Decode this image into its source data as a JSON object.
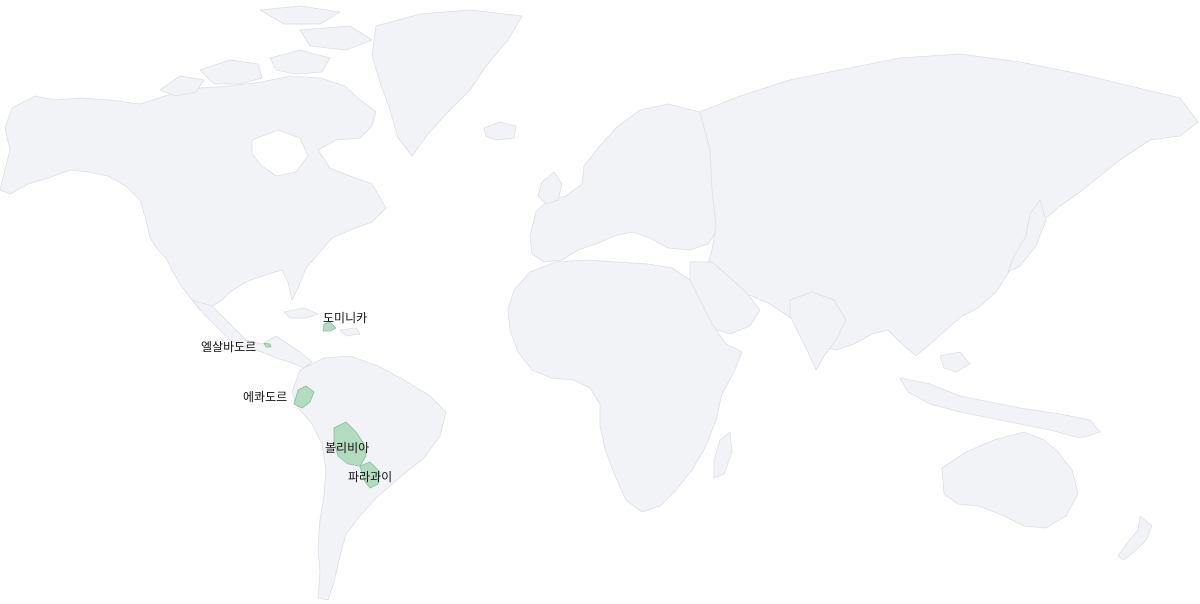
{
  "map": {
    "land_color": "#f2f3f6",
    "border_color": "#dcdee5",
    "highlight_color": "#b3dbbe",
    "highlight_border_color": "#86c197",
    "background": "#ffffff"
  },
  "highlighted_countries": [
    {
      "id": "dominican-republic",
      "label": "도미니카"
    },
    {
      "id": "el-salvador",
      "label": "엘살바도르"
    },
    {
      "id": "ecuador",
      "label": "에콰도르"
    },
    {
      "id": "bolivia",
      "label": "볼리비아"
    },
    {
      "id": "paraguay",
      "label": "파라과이"
    }
  ]
}
